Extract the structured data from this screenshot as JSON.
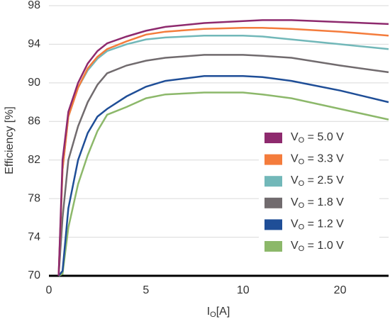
{
  "chart_data": {
    "type": "line",
    "xlabel": "IO[A]",
    "ylabel": "Efficiency [%]",
    "x": [
      0.5,
      0.7,
      1,
      1.5,
      2,
      2.5,
      3,
      4,
      5,
      6,
      8,
      10,
      12,
      15,
      20,
      25
    ],
    "series": [
      {
        "name": "VO = 5.0 V",
        "color": "#8e2a6e",
        "values": [
          70,
          82,
          87,
          90,
          92,
          93.3,
          94.1,
          94.8,
          95.4,
          95.8,
          96.2,
          96.4,
          96.5,
          96.5,
          96.3,
          96.1
        ]
      },
      {
        "name": "VO = 3.3 V",
        "color": "#f47c3c",
        "values": [
          70,
          81,
          86.5,
          89.5,
          91.5,
          92.7,
          93.5,
          94.3,
          95.0,
          95.3,
          95.6,
          95.7,
          95.7,
          95.6,
          95.3,
          94.9
        ]
      },
      {
        "name": "VO = 2.5 V",
        "color": "#72b8b9",
        "values": [
          70,
          81,
          86.5,
          89.5,
          91.3,
          92.5,
          93.3,
          94.0,
          94.5,
          94.7,
          94.9,
          94.9,
          94.8,
          94.5,
          94.0,
          93.5
        ]
      },
      {
        "name": "VO = 1.8 V",
        "color": "#716b6e",
        "values": [
          70,
          76,
          82,
          85.5,
          88,
          89.8,
          91,
          91.8,
          92.3,
          92.6,
          92.9,
          92.9,
          92.8,
          92.6,
          91.8,
          91.1
        ]
      },
      {
        "name": "VO = 1.2 V",
        "color": "#1f4e97",
        "values": [
          70,
          70.5,
          77,
          82,
          84.8,
          86.5,
          87.3,
          88.6,
          89.6,
          90.2,
          90.7,
          90.7,
          90.6,
          90.2,
          89.2,
          88.0
        ]
      },
      {
        "name": "VO = 1.0 V",
        "color": "#8cb86a",
        "values": [
          70,
          70.2,
          75,
          79.5,
          82.5,
          85,
          86.7,
          87.5,
          88.4,
          88.8,
          89.0,
          89.0,
          88.8,
          88.4,
          87.3,
          86.2
        ]
      }
    ],
    "xlim": [
      0,
      25
    ],
    "xticks": [
      0,
      5,
      10,
      20
    ],
    "ylim": [
      70,
      98
    ],
    "yticks": [
      70,
      74,
      78,
      82,
      86,
      90,
      94,
      98
    ],
    "grid": true,
    "legend": "lower right"
  }
}
